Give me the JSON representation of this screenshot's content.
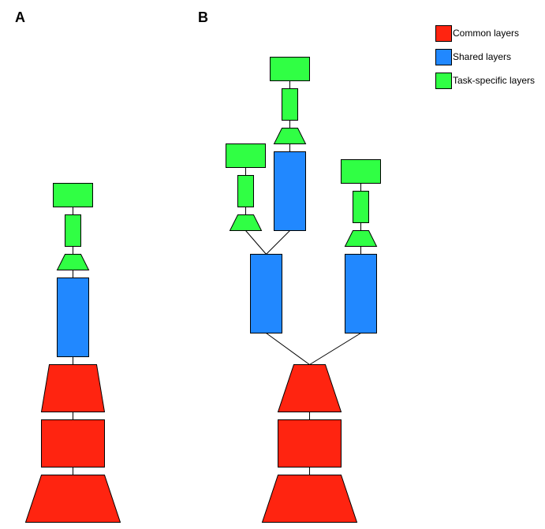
{
  "panels": {
    "a_label": "A",
    "b_label": "B"
  },
  "legend": {
    "items": [
      {
        "key": "common",
        "label": "Common layers",
        "color": "#ff2410"
      },
      {
        "key": "shared",
        "label": "Shared layers",
        "color": "#2188ff"
      },
      {
        "key": "task",
        "label": "Task-specific layers",
        "color": "#30ff44"
      }
    ]
  },
  "colors": {
    "common": "#ff2410",
    "shared": "#2188ff",
    "task": "#30ff44",
    "stroke": "#000000"
  }
}
